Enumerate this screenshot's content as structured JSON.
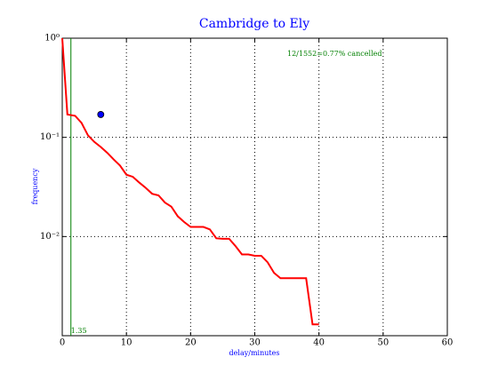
{
  "chart_data": {
    "type": "line",
    "title": "Cambridge to Ely",
    "xlabel": "delay/minutes",
    "ylabel": "frequency",
    "x": [
      0,
      0.8,
      2,
      3,
      4,
      5,
      6,
      7,
      8,
      9,
      10,
      11,
      12,
      13,
      14,
      15,
      16,
      17,
      18,
      19,
      20,
      21,
      22,
      23,
      24,
      25,
      26,
      27,
      28,
      29,
      30,
      31,
      32,
      33,
      34,
      35,
      36,
      37,
      38,
      39,
      40
    ],
    "series": [
      {
        "color": "#ff0000",
        "values": [
          1,
          0.17,
          0.165,
          0.14,
          0.105,
          0.09,
          0.08,
          0.07,
          0.06,
          0.052,
          0.042,
          0.04,
          0.035,
          0.031,
          0.027,
          0.026,
          0.022,
          0.02,
          0.016,
          0.014,
          0.0125,
          0.0125,
          0.0125,
          0.0118,
          0.0096,
          0.0095,
          0.0095,
          0.008,
          0.0066,
          0.0066,
          0.0064,
          0.0064,
          0.0055,
          0.0043,
          0.0038,
          0.0038,
          0.0038,
          0.0038,
          0.0038,
          0.0013,
          0.0013
        ]
      }
    ],
    "point": {
      "x": 6,
      "y": 0.17,
      "color": "#0000ff"
    },
    "vline": {
      "x": 1.35,
      "color": "#007f00"
    },
    "annotation": "12/1552=0.77% cancelled",
    "xlim": [
      0,
      60
    ],
    "xticks": [
      0,
      10,
      20,
      30,
      40,
      50,
      60
    ],
    "ylim": [
      0.001,
      1
    ],
    "log_y": true,
    "yticks": [
      {
        "value": 1,
        "label": "10⁰"
      },
      {
        "value": 0.1,
        "label": "10⁻¹"
      },
      {
        "value": 0.01,
        "label": "10⁻²"
      }
    ],
    "grid": true
  }
}
